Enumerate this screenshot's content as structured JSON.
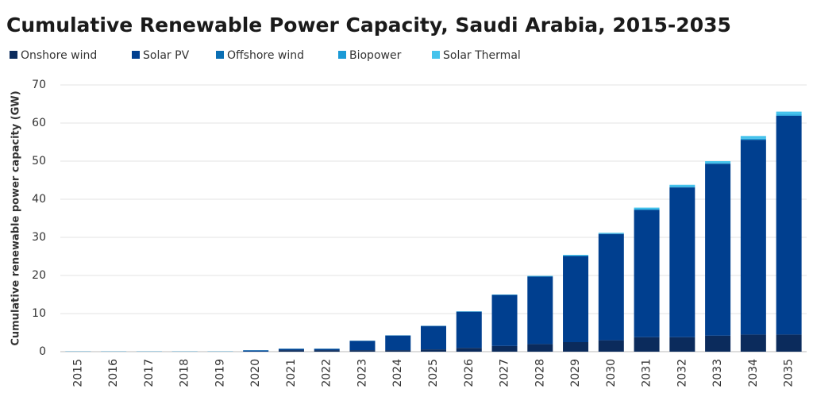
{
  "chart_data": {
    "type": "stacked-bar",
    "title": "Cumulative Renewable Power Capacity, Saudi Arabia, 2015-2035",
    "y_label": "Cumulative renewable power capacity (GW)",
    "categories": [
      "2015",
      "2016",
      "2017",
      "2018",
      "2019",
      "2020",
      "2021",
      "2022",
      "2023",
      "2024",
      "2025",
      "2026",
      "2027",
      "2028",
      "2029",
      "2030",
      "2031",
      "2032",
      "2033",
      "2034",
      "2035"
    ],
    "series": [
      {
        "name": "Onshore wind",
        "color": "#0b2b5c",
        "values": [
          0,
          0,
          0,
          0,
          0,
          0,
          0.4,
          0.4,
          0.4,
          0.4,
          0.6,
          1.0,
          1.5,
          2.0,
          2.5,
          3.0,
          3.8,
          3.8,
          4.2,
          4.5,
          4.5
        ]
      },
      {
        "name": "Solar PV",
        "color": "#003f8f",
        "values": [
          0.05,
          0.05,
          0.05,
          0.05,
          0.05,
          0.35,
          0.35,
          0.35,
          2.45,
          3.85,
          6.15,
          9.5,
          13.4,
          17.7,
          22.6,
          27.9,
          33.4,
          39.3,
          45.1,
          51.1,
          57.4
        ]
      },
      {
        "name": "Offshore wind",
        "color": "#0a6fb4",
        "values": [
          0,
          0,
          0,
          0,
          0,
          0,
          0,
          0,
          0,
          0,
          0,
          0,
          0,
          0,
          0,
          0,
          0,
          0,
          0,
          0,
          0
        ]
      },
      {
        "name": "Biopower",
        "color": "#1b9ad6",
        "values": [
          0,
          0,
          0,
          0,
          0,
          0,
          0,
          0,
          0,
          0,
          0,
          0,
          0,
          0.1,
          0.1,
          0.1,
          0.2,
          0.2,
          0.2,
          0.3,
          0.3
        ]
      },
      {
        "name": "Solar Thermal",
        "color": "#45c3ec",
        "values": [
          0.05,
          0.05,
          0.05,
          0.05,
          0.05,
          0.05,
          0.05,
          0.05,
          0.05,
          0.05,
          0.05,
          0.1,
          0.1,
          0.1,
          0.2,
          0.2,
          0.4,
          0.5,
          0.5,
          0.7,
          0.8
        ]
      }
    ],
    "ylim": [
      0,
      70
    ],
    "yticks": [
      0,
      10,
      20,
      30,
      40,
      50,
      60,
      70
    ],
    "grid": true
  }
}
